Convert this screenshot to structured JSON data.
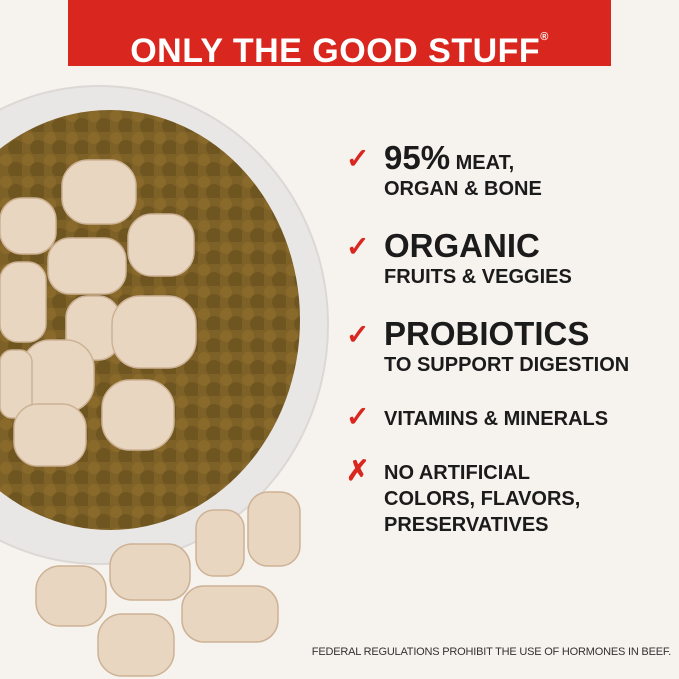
{
  "banner": {
    "title": "ONLY THE GOOD STUFF",
    "mark": "®"
  },
  "features": [
    {
      "icon": "check-icon",
      "symbol": "✓",
      "big": "95%",
      "big_suffix": " MEAT,",
      "lines": [
        "ORGAN & BONE"
      ]
    },
    {
      "icon": "check-icon",
      "symbol": "✓",
      "big": "ORGANIC",
      "lines": [
        "FRUITS & VEGGIES"
      ]
    },
    {
      "icon": "check-icon",
      "symbol": "✓",
      "big": "PROBIOTICS",
      "lines": [
        "TO SUPPORT DIGESTION"
      ]
    },
    {
      "icon": "check-icon",
      "symbol": "✓",
      "lines": [
        "VITAMINS & MINERALS"
      ]
    },
    {
      "icon": "x-icon",
      "symbol": "✗",
      "lines": [
        "NO ARTIFICIAL",
        "COLORS, FLAVORS,",
        "PRESERVATIVES"
      ]
    }
  ],
  "footnote": "FEDERAL REGULATIONS PROHIBIT THE USE OF HORMONES IN BEEF.",
  "colors": {
    "accent": "#d9261f",
    "background": "#f6f2ee"
  }
}
